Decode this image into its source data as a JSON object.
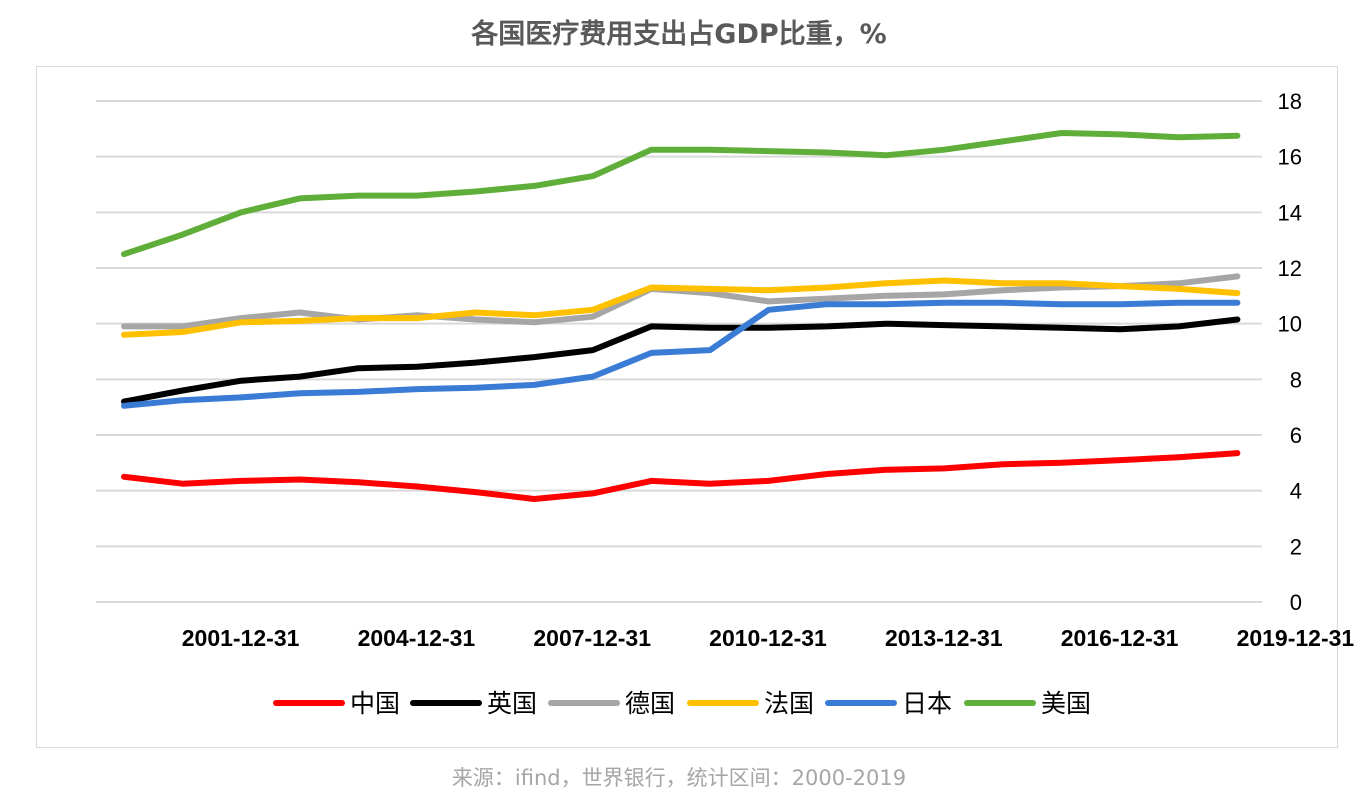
{
  "title": "各国医疗费用支出占GDP比重，%",
  "source": "来源：ifind，世界银行，统计区间：2000-2019",
  "colors": {
    "中国": "#ff0000",
    "英国": "#000000",
    "德国": "#a6a6a6",
    "法国": "#ffc000",
    "日本": "#3a7bd5",
    "美国": "#5fae3a"
  },
  "chart_data": {
    "type": "line",
    "title": "各国医疗费用支出占GDP比重，%",
    "x": [
      "2000-12-31",
      "2001-12-31",
      "2002-12-31",
      "2003-12-31",
      "2004-12-31",
      "2005-12-31",
      "2006-12-31",
      "2007-12-31",
      "2008-12-31",
      "2009-12-31",
      "2010-12-31",
      "2011-12-31",
      "2012-12-31",
      "2013-12-31",
      "2014-12-31",
      "2015-12-31",
      "2016-12-31",
      "2017-12-31",
      "2018-12-31",
      "2019-12-31"
    ],
    "x_tick_labels": [
      "2001-12-31",
      "2004-12-31",
      "2007-12-31",
      "2010-12-31",
      "2013-12-31",
      "2016-12-31",
      "2019-12-31"
    ],
    "ylim": [
      0,
      18
    ],
    "y_ticks": [
      0,
      2,
      4,
      6,
      8,
      10,
      12,
      14,
      16,
      18
    ],
    "y_axis_position": "right",
    "grid": true,
    "legend_position": "bottom",
    "series": [
      {
        "name": "中国",
        "values": [
          4.5,
          4.25,
          4.35,
          4.4,
          4.3,
          4.15,
          3.95,
          3.7,
          3.9,
          4.35,
          4.25,
          4.35,
          4.6,
          4.75,
          4.8,
          4.95,
          5.0,
          5.1,
          5.2,
          5.35
        ]
      },
      {
        "name": "英国",
        "values": [
          7.2,
          7.6,
          7.95,
          8.1,
          8.4,
          8.45,
          8.6,
          8.8,
          9.05,
          9.9,
          9.85,
          9.85,
          9.9,
          10.0,
          9.95,
          9.9,
          9.85,
          9.8,
          9.9,
          10.15
        ]
      },
      {
        "name": "德国",
        "values": [
          9.9,
          9.9,
          10.2,
          10.4,
          10.15,
          10.3,
          10.15,
          10.05,
          10.25,
          11.25,
          11.1,
          10.8,
          10.9,
          11.0,
          11.05,
          11.2,
          11.3,
          11.35,
          11.45,
          11.7
        ]
      },
      {
        "name": "法国",
        "values": [
          9.6,
          9.7,
          10.05,
          10.1,
          10.2,
          10.2,
          10.4,
          10.3,
          10.5,
          11.3,
          11.25,
          11.2,
          11.3,
          11.45,
          11.55,
          11.45,
          11.45,
          11.35,
          11.25,
          11.1
        ]
      },
      {
        "name": "日本",
        "values": [
          7.05,
          7.25,
          7.35,
          7.5,
          7.55,
          7.65,
          7.7,
          7.8,
          8.1,
          8.95,
          9.05,
          10.5,
          10.7,
          10.7,
          10.75,
          10.75,
          10.7,
          10.7,
          10.75,
          10.75
        ]
      },
      {
        "name": "美国",
        "values": [
          12.5,
          13.2,
          14.0,
          14.5,
          14.6,
          14.6,
          14.75,
          14.95,
          15.3,
          16.25,
          16.25,
          16.2,
          16.15,
          16.05,
          16.25,
          16.55,
          16.85,
          16.8,
          16.7,
          16.75
        ]
      }
    ]
  }
}
